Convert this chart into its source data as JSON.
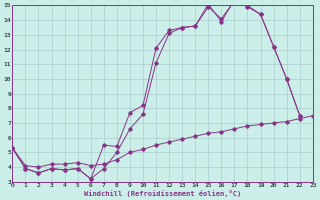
{
  "title": "",
  "xlabel": "Windchill (Refroidissement éolien,°C)",
  "bg_color": "#cceee8",
  "grid_color": "#aacccc",
  "line_color": "#883388",
  "xlim": [
    0,
    23
  ],
  "ylim": [
    3,
    15
  ],
  "xticks": [
    0,
    1,
    2,
    3,
    4,
    5,
    6,
    7,
    8,
    9,
    10,
    11,
    12,
    13,
    14,
    15,
    16,
    17,
    18,
    19,
    20,
    21,
    22,
    23
  ],
  "yticks": [
    3,
    4,
    5,
    6,
    7,
    8,
    9,
    10,
    11,
    12,
    13,
    14,
    15
  ],
  "line1_x": [
    0,
    1,
    2,
    3,
    4,
    5,
    6,
    7,
    8,
    9,
    10,
    11,
    12,
    13,
    14,
    15,
    16,
    17,
    18,
    19,
    20,
    21,
    22
  ],
  "line1_y": [
    5.3,
    3.9,
    3.6,
    3.9,
    3.8,
    3.9,
    3.2,
    5.5,
    5.4,
    7.7,
    8.2,
    12.1,
    13.3,
    13.5,
    13.6,
    14.9,
    14.1,
    15.3,
    15.0,
    14.4,
    12.2,
    10.0,
    7.5
  ],
  "line2_x": [
    0,
    1,
    2,
    3,
    4,
    5,
    6,
    7,
    8,
    9,
    10,
    11,
    12,
    13,
    14,
    15,
    16,
    17,
    18,
    19,
    20,
    21,
    22
  ],
  "line2_y": [
    5.3,
    3.9,
    3.6,
    3.9,
    3.8,
    3.9,
    3.2,
    3.9,
    5.0,
    6.6,
    7.6,
    11.1,
    13.1,
    13.5,
    13.6,
    15.1,
    13.9,
    15.4,
    14.9,
    14.4,
    12.2,
    10.0,
    7.5
  ],
  "line3_x": [
    0,
    1,
    2,
    3,
    4,
    5,
    6,
    7,
    8,
    9,
    10,
    11,
    12,
    13,
    14,
    15,
    16,
    17,
    18,
    19,
    20,
    21,
    22,
    23
  ],
  "line3_y": [
    5.3,
    4.1,
    4.0,
    4.2,
    4.2,
    4.3,
    4.1,
    4.2,
    4.5,
    5.0,
    5.2,
    5.5,
    5.7,
    5.9,
    6.1,
    6.3,
    6.4,
    6.6,
    6.8,
    6.9,
    7.0,
    7.1,
    7.3,
    7.5
  ]
}
